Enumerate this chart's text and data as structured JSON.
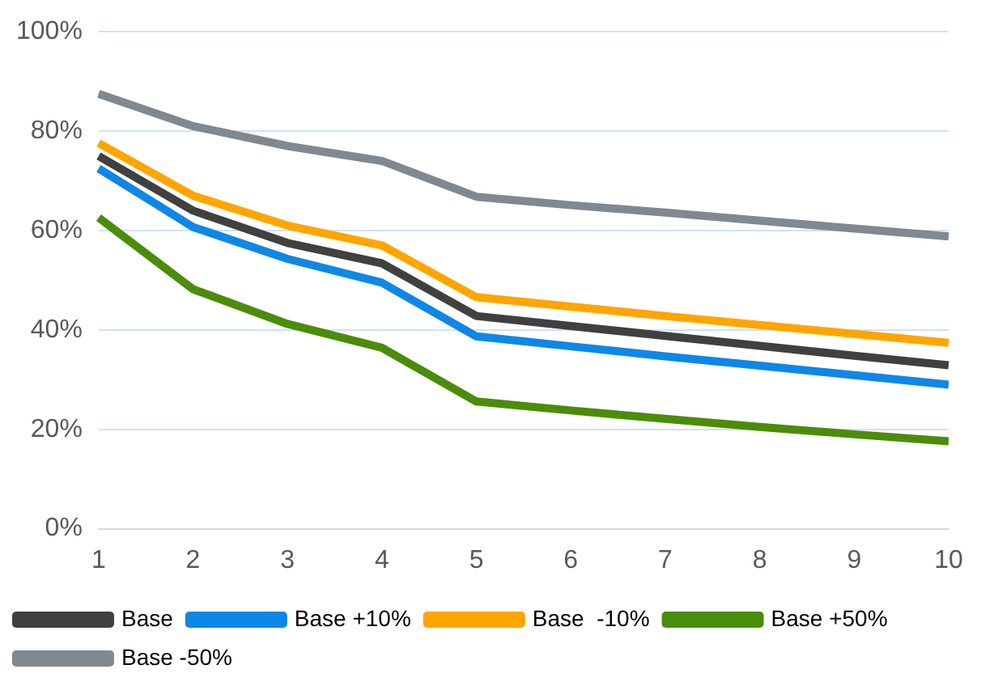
{
  "chart_data": {
    "type": "line",
    "categories": [
      "1",
      "2",
      "3",
      "4",
      "5",
      "6",
      "7",
      "8",
      "9",
      "10"
    ],
    "series": [
      {
        "name": "Base",
        "color": "#404040",
        "values": [
          75,
          64,
          57.5,
          53.4,
          42.8,
          40.8,
          38.8,
          36.8,
          34.8,
          32.9
        ]
      },
      {
        "name": "Base +10%",
        "color": "#0f87e6",
        "values": [
          72.5,
          60.7,
          54.3,
          49.5,
          38.7,
          36.7,
          34.7,
          32.8,
          30.9,
          29
        ]
      },
      {
        "name": "Base  -10%",
        "color": "#ffa500",
        "values": [
          77.6,
          67,
          61,
          57,
          46.6,
          44.7,
          42.8,
          41,
          39.2,
          37.4
        ]
      },
      {
        "name": "Base +50%",
        "color": "#4b8c0a",
        "values": [
          62.6,
          48.2,
          41.2,
          36.4,
          25.6,
          23.8,
          22.1,
          20.5,
          19,
          17.6
        ]
      },
      {
        "name": "Base -50%",
        "color": "#808890",
        "values": [
          87.5,
          81,
          77,
          74,
          66.8,
          65.1,
          63.6,
          62,
          60.4,
          58.8
        ]
      }
    ],
    "ylim": [
      0,
      100
    ],
    "yticks": [
      {
        "value": 0,
        "label": "0%"
      },
      {
        "value": 20,
        "label": "20%"
      },
      {
        "value": 40,
        "label": "40%"
      },
      {
        "value": 60,
        "label": "60%"
      },
      {
        "value": 80,
        "label": "80%"
      },
      {
        "value": 100,
        "label": "100%"
      }
    ],
    "grid": "y",
    "legend": "bottom",
    "marker": "none",
    "line_style": "solid"
  }
}
